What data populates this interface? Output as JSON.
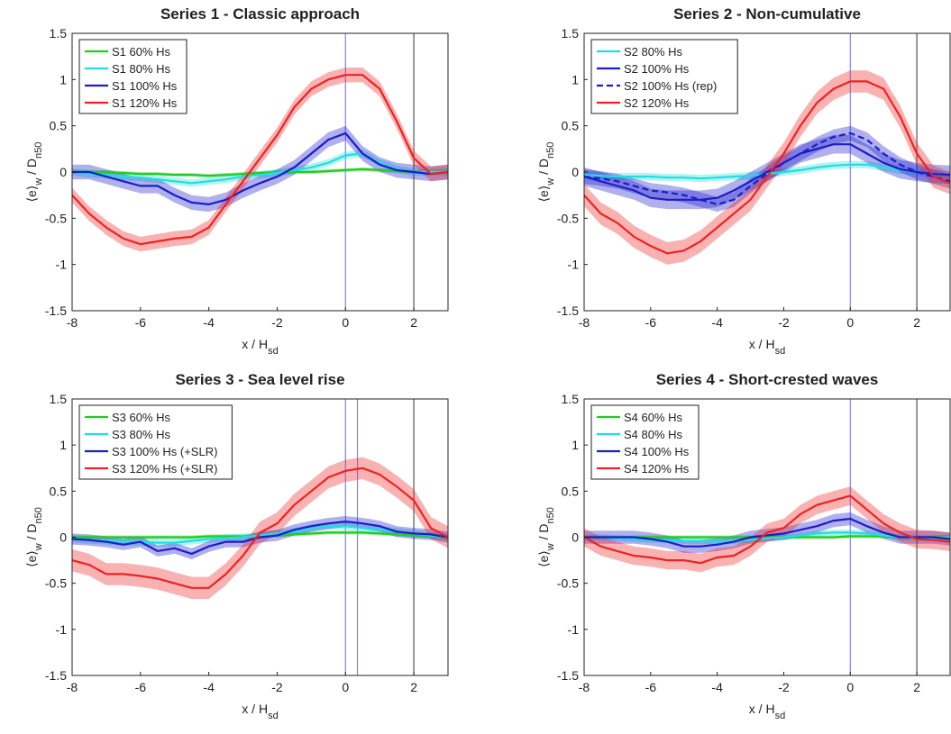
{
  "chart_data": [
    {
      "type": "line",
      "title": "Series 1 - Classic approach",
      "xlabel": [
        "x / H",
        "sd"
      ],
      "ylabel": [
        "⟨e⟩",
        "w",
        " / D",
        "n50"
      ],
      "xlim": [
        -8,
        3
      ],
      "ylim": [
        -1.5,
        1.5
      ],
      "xticks": [
        -8,
        -6,
        -4,
        -2,
        0,
        2
      ],
      "yticks": [
        -1.5,
        -1,
        -0.5,
        0,
        0.5,
        1,
        1.5
      ],
      "vlines": [
        {
          "x": 0,
          "color": "#8080ff"
        },
        {
          "x": 2,
          "color": "#555555"
        }
      ],
      "legend": "upper left",
      "x": [
        -8,
        -7.5,
        -7,
        -6.5,
        -6,
        -5.5,
        -5,
        -4.5,
        -4,
        -3.5,
        -3,
        -2.5,
        -2,
        -1.5,
        -1,
        -0.5,
        0,
        0.5,
        1,
        1.5,
        2,
        2.5,
        3
      ],
      "series": [
        {
          "name": "S1 60% Hs",
          "color": "#22cc22",
          "band": 0.02,
          "values": [
            0,
            0,
            0,
            -0.01,
            -0.02,
            -0.02,
            -0.03,
            -0.03,
            -0.04,
            -0.03,
            -0.02,
            -0.01,
            0,
            0,
            0,
            0.01,
            0.02,
            0.03,
            0.02,
            0.01,
            0,
            0,
            0
          ]
        },
        {
          "name": "S1 80% Hs",
          "color": "#22dddd",
          "band": 0.04,
          "values": [
            0,
            -0.02,
            -0.03,
            -0.05,
            -0.06,
            -0.08,
            -0.1,
            -0.12,
            -0.1,
            -0.08,
            -0.05,
            -0.03,
            -0.01,
            0.02,
            0.05,
            0.1,
            0.18,
            0.2,
            0.1,
            0.03,
            0,
            0,
            0
          ]
        },
        {
          "name": "S1 100% Hs",
          "color": "#1c1ccc",
          "band": 0.08,
          "values": [
            0,
            0,
            -0.05,
            -0.1,
            -0.15,
            -0.15,
            -0.25,
            -0.33,
            -0.35,
            -0.3,
            -0.2,
            -0.12,
            -0.05,
            0.05,
            0.2,
            0.35,
            0.42,
            0.2,
            0.08,
            0.02,
            0,
            -0.02,
            0
          ]
        },
        {
          "name": "S1 120% Hs",
          "color": "#ee2222",
          "band": 0.08,
          "values": [
            -0.25,
            -0.45,
            -0.6,
            -0.72,
            -0.78,
            -0.75,
            -0.72,
            -0.7,
            -0.6,
            -0.35,
            -0.1,
            0.15,
            0.4,
            0.7,
            0.9,
            1,
            1.05,
            1.05,
            0.9,
            0.55,
            0.15,
            -0.02,
            0
          ]
        }
      ]
    },
    {
      "type": "line",
      "title": "Series 2 - Non-cumulative",
      "xlabel": [
        "x / H",
        "sd"
      ],
      "ylabel": [
        "⟨e⟩",
        "w",
        " / D",
        "n50"
      ],
      "xlim": [
        -8,
        3
      ],
      "ylim": [
        -1.5,
        1.5
      ],
      "xticks": [
        -8,
        -6,
        -4,
        -2,
        0,
        2
      ],
      "yticks": [
        -1.5,
        -1,
        -0.5,
        0,
        0.5,
        1,
        1.5
      ],
      "vlines": [
        {
          "x": 0,
          "color": "#8080ff"
        },
        {
          "x": 2,
          "color": "#555555"
        }
      ],
      "legend": "upper left",
      "x": [
        -8,
        -7.5,
        -7,
        -6.5,
        -6,
        -5.5,
        -5,
        -4.5,
        -4,
        -3.5,
        -3,
        -2.5,
        -2,
        -1.5,
        -1,
        -0.5,
        0,
        0.5,
        1,
        1.5,
        2,
        2.5,
        3
      ],
      "series": [
        {
          "name": "S2 80% Hs",
          "color": "#22dddd",
          "band": 0.04,
          "values": [
            -0.03,
            -0.04,
            -0.05,
            -0.05,
            -0.05,
            -0.06,
            -0.06,
            -0.07,
            -0.06,
            -0.05,
            -0.04,
            -0.02,
            0,
            0.02,
            0.05,
            0.07,
            0.08,
            0.08,
            0.05,
            0.02,
            0,
            -0.02,
            -0.03
          ]
        },
        {
          "name": "S2 100% Hs",
          "color": "#1c1ccc",
          "band": 0.1,
          "values": [
            -0.05,
            -0.1,
            -0.15,
            -0.2,
            -0.28,
            -0.3,
            -0.3,
            -0.3,
            -0.28,
            -0.2,
            -0.1,
            0,
            0.1,
            0.2,
            0.25,
            0.3,
            0.3,
            0.2,
            0.1,
            0.03,
            0,
            -0.02,
            -0.03
          ]
        },
        {
          "name": "S2 100% Hs (rep)",
          "color": "#1c1ccc",
          "dash": true,
          "band": 0.08,
          "values": [
            -0.05,
            -0.07,
            -0.1,
            -0.15,
            -0.2,
            -0.22,
            -0.25,
            -0.3,
            -0.35,
            -0.3,
            -0.15,
            -0.02,
            0.1,
            0.2,
            0.3,
            0.38,
            0.42,
            0.35,
            0.2,
            0.08,
            0,
            -0.05,
            -0.1
          ]
        },
        {
          "name": "S2 120% Hs",
          "color": "#ee2222",
          "band": 0.12,
          "values": [
            -0.25,
            -0.45,
            -0.55,
            -0.7,
            -0.8,
            -0.88,
            -0.85,
            -0.75,
            -0.6,
            -0.45,
            -0.3,
            -0.05,
            0.2,
            0.5,
            0.75,
            0.9,
            0.98,
            0.98,
            0.9,
            0.6,
            0.2,
            -0.05,
            -0.12
          ]
        }
      ]
    },
    {
      "type": "line",
      "title": "Series 3 - Sea level rise",
      "xlabel": [
        "x / H",
        "sd"
      ],
      "ylabel": [
        "⟨e⟩",
        "w",
        " / D",
        "n50"
      ],
      "xlim": [
        -8,
        3
      ],
      "ylim": [
        -1.5,
        1.5
      ],
      "xticks": [
        -8,
        -6,
        -4,
        -2,
        0,
        2
      ],
      "yticks": [
        -1.5,
        -1,
        -0.5,
        0,
        0.5,
        1,
        1.5
      ],
      "vlines": [
        {
          "x": 0,
          "color": "#8080ff"
        },
        {
          "x": 0.35,
          "color": "#8080ff"
        },
        {
          "x": 2,
          "color": "#555555"
        }
      ],
      "legend": "upper left",
      "x": [
        -8,
        -7.5,
        -7,
        -6.5,
        -6,
        -5.5,
        -5,
        -4.5,
        -4,
        -3.5,
        -3,
        -2.5,
        -2,
        -1.5,
        -1,
        -0.5,
        0,
        0.5,
        1,
        1.5,
        2,
        2.5,
        3
      ],
      "series": [
        {
          "name": "S3 60% Hs",
          "color": "#22cc22",
          "band": 0.02,
          "values": [
            0,
            0,
            0,
            0,
            0,
            0,
            0,
            0,
            0.01,
            0.01,
            0.01,
            0.02,
            0.02,
            0.03,
            0.04,
            0.05,
            0.05,
            0.05,
            0.04,
            0.03,
            0.02,
            0.01,
            0
          ]
        },
        {
          "name": "S3 80% Hs",
          "color": "#22dddd",
          "band": 0.04,
          "values": [
            -0.02,
            -0.03,
            -0.04,
            -0.05,
            -0.05,
            -0.06,
            -0.06,
            -0.04,
            -0.02,
            -0.01,
            0,
            0.02,
            0.04,
            0.06,
            0.1,
            0.12,
            0.12,
            0.1,
            0.08,
            0.06,
            0.04,
            0.02,
            0
          ]
        },
        {
          "name": "S3 100% Hs (+SLR)",
          "color": "#1c1ccc",
          "band": 0.06,
          "values": [
            -0.02,
            -0.03,
            -0.05,
            -0.08,
            -0.05,
            -0.15,
            -0.12,
            -0.18,
            -0.1,
            -0.05,
            -0.05,
            0,
            0.02,
            0.08,
            0.12,
            0.15,
            0.17,
            0.15,
            0.12,
            0.06,
            0.04,
            0.03,
            0
          ]
        },
        {
          "name": "S3 120% Hs (+SLR)",
          "color": "#ee2222",
          "band": 0.12,
          "values": [
            -0.25,
            -0.3,
            -0.4,
            -0.4,
            -0.42,
            -0.45,
            -0.5,
            -0.55,
            -0.55,
            -0.4,
            -0.2,
            0.05,
            0.15,
            0.35,
            0.5,
            0.65,
            0.72,
            0.75,
            0.68,
            0.55,
            0.4,
            0.1,
            0
          ]
        }
      ]
    },
    {
      "type": "line",
      "title": "Series 4 - Short-crested waves",
      "xlabel": [
        "x / H",
        "sd"
      ],
      "ylabel": [
        "⟨e⟩",
        "w",
        " / D",
        "n50"
      ],
      "xlim": [
        -8,
        3
      ],
      "ylim": [
        -1.5,
        1.5
      ],
      "xticks": [
        -8,
        -6,
        -4,
        -2,
        0,
        2
      ],
      "yticks": [
        -1.5,
        -1,
        -0.5,
        0,
        0.5,
        1,
        1.5
      ],
      "vlines": [
        {
          "x": 0,
          "color": "#8080ff"
        },
        {
          "x": 2,
          "color": "#555555"
        }
      ],
      "legend": "upper left",
      "x": [
        -8,
        -7.5,
        -7,
        -6.5,
        -6,
        -5.5,
        -5,
        -4.5,
        -4,
        -3.5,
        -3,
        -2.5,
        -2,
        -1.5,
        -1,
        -0.5,
        0,
        0.5,
        1,
        1.5,
        2,
        2.5,
        3
      ],
      "series": [
        {
          "name": "S4 60% Hs",
          "color": "#22cc22",
          "band": 0.02,
          "values": [
            0,
            0,
            0,
            0,
            0,
            0,
            0,
            0,
            0,
            0,
            0,
            0,
            0,
            0,
            0,
            0,
            0.01,
            0.01,
            0.01,
            0,
            0,
            0,
            0
          ]
        },
        {
          "name": "S4 80% Hs",
          "color": "#22dddd",
          "band": 0.03,
          "values": [
            0,
            0,
            -0.01,
            -0.02,
            -0.03,
            -0.03,
            -0.04,
            -0.04,
            -0.05,
            -0.04,
            -0.03,
            -0.01,
            0,
            0.02,
            0.04,
            0.05,
            0.05,
            0.04,
            0.02,
            0,
            -0.01,
            -0.01,
            0
          ]
        },
        {
          "name": "S4 100% Hs",
          "color": "#1c1ccc",
          "band": 0.07,
          "values": [
            0,
            0,
            0,
            0,
            -0.02,
            -0.05,
            -0.1,
            -0.1,
            -0.08,
            -0.05,
            0,
            0.02,
            0.04,
            0.08,
            0.12,
            0.18,
            0.2,
            0.12,
            0.05,
            0,
            0,
            0,
            -0.02
          ]
        },
        {
          "name": "S4 120% Hs",
          "color": "#ee2222",
          "band": 0.1,
          "values": [
            0,
            -0.1,
            -0.15,
            -0.2,
            -0.22,
            -0.25,
            -0.25,
            -0.28,
            -0.22,
            -0.2,
            -0.1,
            0.05,
            0.1,
            0.25,
            0.35,
            0.4,
            0.45,
            0.3,
            0.15,
            0.05,
            -0.02,
            -0.03,
            -0.05
          ]
        }
      ]
    }
  ]
}
